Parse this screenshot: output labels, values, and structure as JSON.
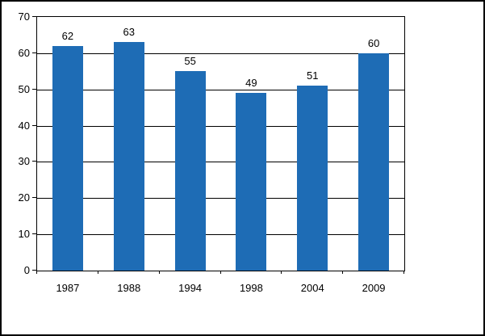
{
  "chart_data": {
    "type": "bar",
    "title": "",
    "categories": [
      "1987",
      "1988",
      "1994",
      "1998",
      "2004",
      "2009"
    ],
    "values": [
      62,
      63,
      55,
      49,
      51,
      60
    ],
    "value_labels": [
      "62",
      "63",
      "55",
      "49",
      "51",
      "60"
    ],
    "ylim": [
      0,
      70
    ],
    "yticks": [
      0,
      10,
      20,
      30,
      40,
      50,
      60,
      70
    ],
    "ytick_labels": [
      "0",
      "10",
      "20",
      "30",
      "40",
      "50",
      "60",
      "70"
    ],
    "xlabel": "",
    "ylabel": "",
    "grid": "horizontal",
    "legend": "none",
    "bar_color": "#1E6CB5",
    "axis_color": "#000000",
    "text_color": "#000000",
    "background_color": "#ffffff"
  }
}
